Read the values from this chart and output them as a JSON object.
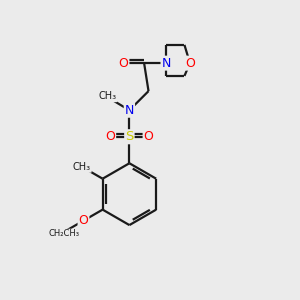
{
  "background_color": "#ebebeb",
  "bond_color": "#1a1a1a",
  "bond_width": 1.6,
  "atom_colors": {
    "O": "#ff0000",
    "N": "#0000ee",
    "S": "#cccc00",
    "C": "#1a1a1a"
  },
  "font_size": 8.5,
  "fig_size": [
    3.0,
    3.0
  ],
  "dpi": 100,
  "xlim": [
    0,
    10
  ],
  "ylim": [
    0,
    10
  ]
}
